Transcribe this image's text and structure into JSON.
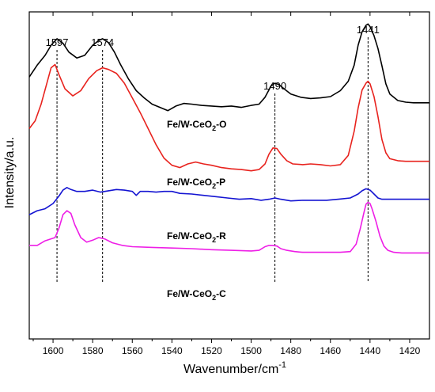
{
  "chart_data": {
    "type": "line",
    "title": "",
    "xlabel": "Wavenumber/cm",
    "xlabel_superscript": "-1",
    "ylabel": "Intensity/a.u.",
    "xlim": [
      1612,
      1410
    ],
    "x_reversed": true,
    "ylim": [
      0,
      1
    ],
    "y_ticks_shown": false,
    "grid": false,
    "x_ticks": [
      1600,
      1580,
      1560,
      1540,
      1520,
      1500,
      1480,
      1460,
      1440,
      1420
    ],
    "peak_labels": [
      {
        "text": "1597",
        "x": 1598
      },
      {
        "text": "1574",
        "x": 1575
      },
      {
        "text": "1490",
        "x": 1488
      },
      {
        "text": "1441",
        "x": 1441
      }
    ],
    "series": [
      {
        "name": "Fe/W-CeO2-O",
        "label_main": "Fe/W-CeO",
        "label_sub": "2",
        "label_tail": "-O",
        "color": "#000000",
        "x": [
          1612,
          1608,
          1604,
          1601,
          1598,
          1595,
          1592,
          1588,
          1584,
          1580,
          1577,
          1575,
          1572,
          1569,
          1566,
          1562,
          1558,
          1554,
          1550,
          1546,
          1542,
          1538,
          1534,
          1530,
          1525,
          1520,
          1515,
          1510,
          1505,
          1500,
          1496,
          1493,
          1490,
          1488,
          1486,
          1483,
          1480,
          1475,
          1470,
          1465,
          1460,
          1455,
          1451,
          1448,
          1446,
          1444,
          1442,
          1441,
          1440,
          1438,
          1436,
          1434,
          1432,
          1430,
          1426,
          1422,
          1418,
          1414,
          1410
        ],
        "values": [
          0.801,
          0.837,
          0.867,
          0.898,
          0.918,
          0.904,
          0.877,
          0.859,
          0.867,
          0.898,
          0.912,
          0.918,
          0.906,
          0.877,
          0.84,
          0.796,
          0.759,
          0.737,
          0.718,
          0.708,
          0.698,
          0.712,
          0.72,
          0.718,
          0.714,
          0.712,
          0.71,
          0.712,
          0.708,
          0.714,
          0.718,
          0.739,
          0.773,
          0.782,
          0.778,
          0.763,
          0.749,
          0.739,
          0.735,
          0.737,
          0.741,
          0.759,
          0.788,
          0.837,
          0.898,
          0.939,
          0.959,
          0.963,
          0.955,
          0.927,
          0.888,
          0.835,
          0.78,
          0.749,
          0.729,
          0.724,
          0.722,
          0.722,
          0.722
        ]
      },
      {
        "name": "Fe/W-CeO2-P",
        "label_main": "Fe/W-CeO",
        "label_sub": "2",
        "label_tail": "-P",
        "color": "#e8231e",
        "x": [
          1612,
          1609,
          1606,
          1603,
          1601,
          1599,
          1597,
          1594,
          1590,
          1586,
          1582,
          1578,
          1575,
          1572,
          1568,
          1564,
          1560,
          1556,
          1552,
          1548,
          1544,
          1540,
          1536,
          1532,
          1528,
          1524,
          1520,
          1515,
          1510,
          1505,
          1500,
          1496,
          1493,
          1491,
          1489,
          1487,
          1485,
          1482,
          1479,
          1474,
          1470,
          1465,
          1460,
          1455,
          1451,
          1448,
          1446,
          1444,
          1442,
          1441,
          1440,
          1438,
          1436,
          1434,
          1432,
          1430,
          1426,
          1422,
          1418,
          1414,
          1410
        ],
        "values": [
          0.643,
          0.667,
          0.718,
          0.784,
          0.829,
          0.839,
          0.808,
          0.765,
          0.743,
          0.759,
          0.796,
          0.82,
          0.829,
          0.824,
          0.812,
          0.782,
          0.737,
          0.692,
          0.643,
          0.594,
          0.553,
          0.531,
          0.524,
          0.535,
          0.541,
          0.535,
          0.531,
          0.524,
          0.52,
          0.518,
          0.514,
          0.518,
          0.535,
          0.565,
          0.584,
          0.582,
          0.565,
          0.545,
          0.535,
          0.533,
          0.535,
          0.533,
          0.529,
          0.533,
          0.561,
          0.635,
          0.706,
          0.761,
          0.782,
          0.788,
          0.78,
          0.741,
          0.68,
          0.61,
          0.569,
          0.551,
          0.545,
          0.543,
          0.543,
          0.543,
          0.543
        ]
      },
      {
        "name": "Fe/W-CeO2-R",
        "label_main": "Fe/W-CeO",
        "label_sub": "2",
        "label_tail": "-R",
        "color": "#1414d2",
        "x": [
          1612,
          1608,
          1604,
          1600,
          1597,
          1595,
          1593,
          1591,
          1588,
          1584,
          1580,
          1576,
          1572,
          1568,
          1564,
          1560,
          1558,
          1556,
          1552,
          1548,
          1544,
          1540,
          1536,
          1530,
          1524,
          1518,
          1512,
          1506,
          1500,
          1495,
          1491,
          1488,
          1485,
          1480,
          1474,
          1468,
          1462,
          1456,
          1450,
          1446,
          1444,
          1442,
          1440,
          1438,
          1436,
          1434,
          1430,
          1426,
          1422,
          1418,
          1414,
          1410
        ],
        "values": [
          0.38,
          0.392,
          0.398,
          0.414,
          0.437,
          0.455,
          0.463,
          0.457,
          0.451,
          0.451,
          0.455,
          0.449,
          0.453,
          0.457,
          0.455,
          0.451,
          0.439,
          0.451,
          0.451,
          0.449,
          0.451,
          0.451,
          0.445,
          0.443,
          0.439,
          0.435,
          0.431,
          0.427,
          0.429,
          0.424,
          0.427,
          0.431,
          0.427,
          0.422,
          0.424,
          0.424,
          0.424,
          0.427,
          0.431,
          0.443,
          0.453,
          0.459,
          0.455,
          0.443,
          0.431,
          0.427,
          0.427,
          0.427,
          0.427,
          0.427,
          0.427,
          0.427
        ]
      },
      {
        "name": "Fe/W-CeO2-C",
        "label_main": "Fe/W-CeO",
        "label_sub": "2",
        "label_tail": "-C",
        "color": "#ee1ee6",
        "x": [
          1612,
          1608,
          1604,
          1601,
          1599,
          1597,
          1595,
          1593,
          1591,
          1589,
          1586,
          1583,
          1580,
          1577,
          1574,
          1570,
          1565,
          1560,
          1550,
          1540,
          1530,
          1520,
          1510,
          1500,
          1496,
          1493,
          1491,
          1489,
          1487,
          1485,
          1482,
          1478,
          1474,
          1470,
          1465,
          1460,
          1455,
          1450,
          1447,
          1445,
          1443,
          1442,
          1441,
          1440,
          1439,
          1437,
          1435,
          1433,
          1431,
          1428,
          1424,
          1420,
          1416,
          1412,
          1410
        ],
        "values": [
          0.286,
          0.286,
          0.3,
          0.306,
          0.31,
          0.339,
          0.38,
          0.392,
          0.384,
          0.349,
          0.31,
          0.296,
          0.302,
          0.31,
          0.306,
          0.294,
          0.286,
          0.282,
          0.28,
          0.278,
          0.276,
          0.273,
          0.271,
          0.269,
          0.271,
          0.282,
          0.286,
          0.286,
          0.284,
          0.276,
          0.271,
          0.267,
          0.265,
          0.265,
          0.265,
          0.265,
          0.265,
          0.267,
          0.29,
          0.335,
          0.388,
          0.412,
          0.418,
          0.414,
          0.398,
          0.359,
          0.314,
          0.284,
          0.271,
          0.265,
          0.263,
          0.263,
          0.263,
          0.263,
          0.263
        ]
      }
    ]
  },
  "series_label_positions": [
    "Fe/W-CeO2-O",
    "Fe/W-CeO2-P",
    "Fe/W-CeO2-R",
    "Fe/W-CeO2-C"
  ]
}
